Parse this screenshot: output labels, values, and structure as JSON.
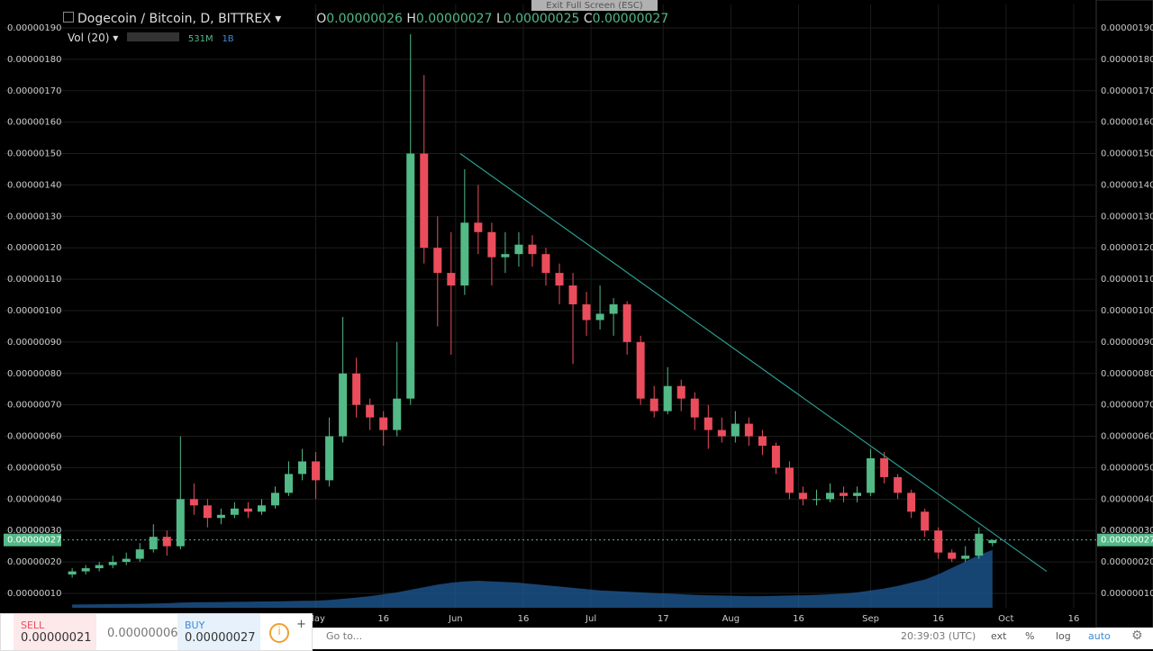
{
  "chart_data": {
    "type": "candlestick",
    "title": "Dogecoin / Bitcoin, D, BITTREX",
    "legend": {
      "o_key": "O",
      "o": "0.00000026",
      "h_key": "H",
      "h": "0.00000027",
      "l_key": "L",
      "l": "0.00000025",
      "c_key": "C",
      "c": "0.00000027",
      "vol_title": "Vol (20)",
      "vol_ma": "531M",
      "vol": "1B"
    },
    "up_color": "#53b987",
    "down_color": "#eb4d5c",
    "volume_color": "#1f5c99",
    "grid": true,
    "xlim": [
      -69,
      173
    ],
    "xticks": [
      {
        "value": 0,
        "label": "May"
      },
      {
        "value": 15,
        "label": "16"
      },
      {
        "value": 31,
        "label": "Jun"
      },
      {
        "value": 46,
        "label": "16"
      },
      {
        "value": 61,
        "label": "Jul"
      },
      {
        "value": 77,
        "label": "17"
      },
      {
        "value": 92,
        "label": "Aug"
      },
      {
        "value": 107,
        "label": "16"
      },
      {
        "value": 123,
        "label": "Sep"
      },
      {
        "value": 138,
        "label": "16"
      },
      {
        "value": 153,
        "label": "Oct"
      },
      {
        "value": 168,
        "label": "16"
      }
    ],
    "ylim": [
      5.41e-08,
      1.9745e-06
    ],
    "yticks": [
      {
        "value": 1e-07,
        "label": "0.00000010"
      },
      {
        "value": 2e-07,
        "label": "0.00000020"
      },
      {
        "value": 3e-07,
        "label": "0.00000030"
      },
      {
        "value": 4e-07,
        "label": "0.00000040"
      },
      {
        "value": 5e-07,
        "label": "0.00000050"
      },
      {
        "value": 6e-07,
        "label": "0.00000060"
      },
      {
        "value": 7e-07,
        "label": "0.00000070"
      },
      {
        "value": 8e-07,
        "label": "0.00000080"
      },
      {
        "value": 9e-07,
        "label": "0.00000090"
      },
      {
        "value": 1e-06,
        "label": "0.00000100"
      },
      {
        "value": 1.1e-06,
        "label": "0.00000110"
      },
      {
        "value": 1.2e-06,
        "label": "0.00000120"
      },
      {
        "value": 1.3e-06,
        "label": "0.00000130"
      },
      {
        "value": 1.4e-06,
        "label": "0.00000140"
      },
      {
        "value": 1.5e-06,
        "label": "0.00000150"
      },
      {
        "value": 1.6e-06,
        "label": "0.00000160"
      },
      {
        "value": 1.7e-06,
        "label": "0.00000170"
      },
      {
        "value": 1.8e-06,
        "label": "0.00000180"
      },
      {
        "value": 1.9e-06,
        "label": "0.00000190"
      }
    ],
    "x": [
      -54,
      -51,
      -48,
      -45,
      -42,
      -39,
      -36,
      -33,
      -30,
      -27,
      -24,
      -21,
      -18,
      -15,
      -12,
      -9,
      -6,
      -3,
      0,
      3,
      6,
      9,
      12,
      15,
      18,
      21,
      24,
      27,
      30,
      33,
      36,
      39,
      42,
      45,
      48,
      51,
      54,
      57,
      60,
      63,
      66,
      69,
      72,
      75,
      78,
      81,
      84,
      87,
      90,
      93,
      96,
      99,
      102,
      105,
      108,
      111,
      114,
      117,
      120,
      123,
      126,
      129,
      132,
      135,
      138,
      141,
      144,
      147,
      150
    ],
    "ohlc": [
      [
        1.6e-07,
        1.8e-07,
        1.5e-07,
        1.7e-07
      ],
      [
        1.7e-07,
        1.9e-07,
        1.6e-07,
        1.8e-07
      ],
      [
        1.8e-07,
        2e-07,
        1.7e-07,
        1.9e-07
      ],
      [
        1.9e-07,
        2.2e-07,
        1.8e-07,
        2e-07
      ],
      [
        2e-07,
        2.3e-07,
        1.9e-07,
        2.1e-07
      ],
      [
        2.1e-07,
        2.6e-07,
        2e-07,
        2.4e-07
      ],
      [
        2.4e-07,
        3.2e-07,
        2.3e-07,
        2.8e-07
      ],
      [
        2.8e-07,
        3e-07,
        2.2e-07,
        2.5e-07
      ],
      [
        2.5e-07,
        6e-07,
        2.4e-07,
        4e-07
      ],
      [
        4e-07,
        4.5e-07,
        3.5e-07,
        3.8e-07
      ],
      [
        3.8e-07,
        4e-07,
        3.1e-07,
        3.4e-07
      ],
      [
        3.4e-07,
        3.7e-07,
        3.2e-07,
        3.5e-07
      ],
      [
        3.5e-07,
        3.9e-07,
        3.4e-07,
        3.7e-07
      ],
      [
        3.7e-07,
        3.9e-07,
        3.4e-07,
        3.6e-07
      ],
      [
        3.6e-07,
        4e-07,
        3.5e-07,
        3.8e-07
      ],
      [
        3.8e-07,
        4.4e-07,
        3.7e-07,
        4.2e-07
      ],
      [
        4.2e-07,
        5.2e-07,
        4.1e-07,
        4.8e-07
      ],
      [
        4.8e-07,
        5.6e-07,
        4.6e-07,
        5.2e-07
      ],
      [
        5.2e-07,
        5.5e-07,
        4e-07,
        4.6e-07
      ],
      [
        4.6e-07,
        6.6e-07,
        4.4e-07,
        6e-07
      ],
      [
        6e-07,
        9.8e-07,
        5.8e-07,
        8e-07
      ],
      [
        8e-07,
        8.5e-07,
        6.6e-07,
        7e-07
      ],
      [
        7e-07,
        7.2e-07,
        6.2e-07,
        6.6e-07
      ],
      [
        6.6e-07,
        6.8e-07,
        5.7e-07,
        6.2e-07
      ],
      [
        6.2e-07,
        9e-07,
        6e-07,
        7.2e-07
      ],
      [
        7.2e-07,
        1.88e-06,
        7e-07,
        1.5e-06
      ],
      [
        1.5e-06,
        1.75e-06,
        1.15e-06,
        1.2e-06
      ],
      [
        1.2e-06,
        1.3e-06,
        9.5e-07,
        1.12e-06
      ],
      [
        1.12e-06,
        1.25e-06,
        8.6e-07,
        1.08e-06
      ],
      [
        1.08e-06,
        1.45e-06,
        1.05e-06,
        1.28e-06
      ],
      [
        1.28e-06,
        1.4e-06,
        1.18e-06,
        1.25e-06
      ],
      [
        1.25e-06,
        1.28e-06,
        1.08e-06,
        1.17e-06
      ],
      [
        1.17e-06,
        1.25e-06,
        1.12e-06,
        1.18e-06
      ],
      [
        1.18e-06,
        1.25e-06,
        1.14e-06,
        1.21e-06
      ],
      [
        1.21e-06,
        1.24e-06,
        1.14e-06,
        1.18e-06
      ],
      [
        1.18e-06,
        1.2e-06,
        1.08e-06,
        1.12e-06
      ],
      [
        1.12e-06,
        1.15e-06,
        1.02e-06,
        1.08e-06
      ],
      [
        1.08e-06,
        1.12e-06,
        8.3e-07,
        1.02e-06
      ],
      [
        1.02e-06,
        1.06e-06,
        9.2e-07,
        9.7e-07
      ],
      [
        9.7e-07,
        1.08e-06,
        9.4e-07,
        9.9e-07
      ],
      [
        9.9e-07,
        1.04e-06,
        9.2e-07,
        1.02e-06
      ],
      [
        1.02e-06,
        1.03e-06,
        8.6e-07,
        9e-07
      ],
      [
        9e-07,
        9.2e-07,
        7e-07,
        7.2e-07
      ],
      [
        7.2e-07,
        7.6e-07,
        6.6e-07,
        6.8e-07
      ],
      [
        6.8e-07,
        8.2e-07,
        6.7e-07,
        7.6e-07
      ],
      [
        7.6e-07,
        7.8e-07,
        6.8e-07,
        7.2e-07
      ],
      [
        7.2e-07,
        7.4e-07,
        6.2e-07,
        6.6e-07
      ],
      [
        6.6e-07,
        7e-07,
        5.6e-07,
        6.2e-07
      ],
      [
        6.2e-07,
        6.6e-07,
        5.8e-07,
        6e-07
      ],
      [
        6e-07,
        6.8e-07,
        5.8e-07,
        6.4e-07
      ],
      [
        6.4e-07,
        6.6e-07,
        5.7e-07,
        6e-07
      ],
      [
        6e-07,
        6.2e-07,
        5.4e-07,
        5.7e-07
      ],
      [
        5.7e-07,
        5.8e-07,
        4.8e-07,
        5e-07
      ],
      [
        5e-07,
        5.2e-07,
        4e-07,
        4.2e-07
      ],
      [
        4.2e-07,
        4.4e-07,
        3.8e-07,
        4e-07
      ],
      [
        4e-07,
        4.3e-07,
        3.8e-07,
        4e-07
      ],
      [
        4e-07,
        4.5e-07,
        3.9e-07,
        4.2e-07
      ],
      [
        4.2e-07,
        4.4e-07,
        3.9e-07,
        4.1e-07
      ],
      [
        4.1e-07,
        4.4e-07,
        3.9e-07,
        4.2e-07
      ],
      [
        4.2e-07,
        5.6e-07,
        4.1e-07,
        5.3e-07
      ],
      [
        5.3e-07,
        5.5e-07,
        4.5e-07,
        4.7e-07
      ],
      [
        4.7e-07,
        4.8e-07,
        4e-07,
        4.2e-07
      ],
      [
        4.2e-07,
        4.3e-07,
        3.4e-07,
        3.6e-07
      ],
      [
        3.6e-07,
        3.7e-07,
        2.8e-07,
        3e-07
      ],
      [
        3e-07,
        3.1e-07,
        2.1e-07,
        2.3e-07
      ],
      [
        2.3e-07,
        2.4e-07,
        2e-07,
        2.1e-07
      ],
      [
        2.1e-07,
        2.5e-07,
        2e-07,
        2.2e-07
      ],
      [
        2.2e-07,
        3.1e-07,
        2.1e-07,
        2.9e-07
      ],
      [
        2.6e-07,
        2.7e-07,
        2.5e-07,
        2.7e-07
      ]
    ],
    "vol_ylim": [
      0,
      3500
    ],
    "volume_ma": [
      50,
      52,
      55,
      58,
      60,
      62,
      66,
      70,
      80,
      85,
      88,
      90,
      92,
      95,
      98,
      100,
      104,
      108,
      110,
      120,
      140,
      160,
      180,
      210,
      240,
      280,
      320,
      360,
      390,
      410,
      420,
      410,
      400,
      390,
      370,
      350,
      330,
      310,
      290,
      270,
      260,
      250,
      240,
      230,
      220,
      210,
      200,
      195,
      190,
      185,
      180,
      180,
      185,
      190,
      195,
      200,
      210,
      220,
      240,
      270,
      300,
      340,
      390,
      440,
      520,
      620,
      720,
      820,
      900
    ],
    "trendline": {
      "x": [
        32,
        162
      ],
      "y": [
        1.5e-06,
        1.7e-07
      ],
      "color": "#2a9d8f"
    },
    "last_price": {
      "value": 2.7e-07,
      "label": "0.00000027"
    }
  },
  "ui": {
    "fullscreen": "Exit Full Screen (ESC)",
    "sell": "SELL",
    "sell_price": "0.00000021",
    "spread": "0.00000006",
    "buy": "BUY",
    "buy_price": "0.00000027",
    "goto": "Go to...",
    "time": "20:39:03 (UTC)",
    "ext": "ext",
    "pct": "%",
    "log": "log",
    "auto": "auto"
  }
}
